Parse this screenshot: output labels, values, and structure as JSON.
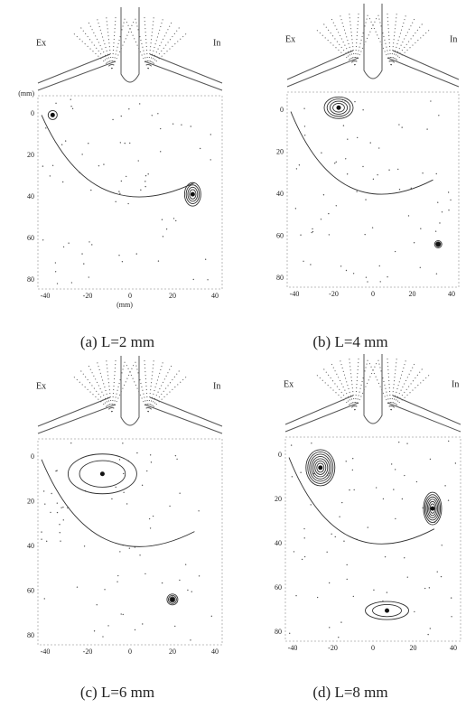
{
  "panels": [
    {
      "label_left": "Ex",
      "label_right": "In",
      "y_ticks": [
        "0",
        "20",
        "40",
        "60",
        "80"
      ],
      "x_ticks": [
        "-40",
        "-20",
        "0",
        "20",
        "40"
      ],
      "y_unit": "(mm)",
      "x_unit": "(mm)",
      "caption": "(a)  L=2 mm"
    },
    {
      "label_left": "Ex",
      "label_right": "In",
      "y_ticks": [
        "0",
        "20",
        "40",
        "60",
        "80"
      ],
      "x_ticks": [
        "-40",
        "-20",
        "0",
        "20",
        "40"
      ],
      "caption": "(b)  L=4 mm"
    },
    {
      "label_left": "Ex",
      "label_right": "In",
      "y_ticks": [
        "0",
        "20",
        "40",
        "60",
        "80"
      ],
      "x_ticks": [
        "-40",
        "-20",
        "0",
        "20",
        "40"
      ],
      "caption": "(c)  L=6 mm"
    },
    {
      "label_left": "Ex",
      "label_right": "In",
      "y_ticks": [
        "0",
        "20",
        "40",
        "60",
        "80"
      ],
      "x_ticks": [
        "-40",
        "-20",
        "0",
        "20",
        "40"
      ],
      "caption": "(d)  L=8 mm"
    }
  ]
}
